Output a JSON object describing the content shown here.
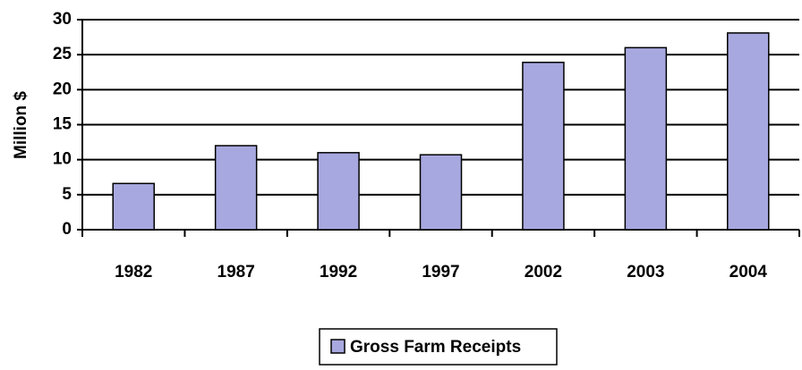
{
  "chart_data": {
    "type": "bar",
    "y_label": "Million $",
    "categories": [
      "1982",
      "1987",
      "1992",
      "1997",
      "2002",
      "2003",
      "2004"
    ],
    "series": [
      {
        "name": "Gross Farm Receipts",
        "color": "#a8a8e0",
        "values": [
          6.6,
          12,
          11,
          10.7,
          23.9,
          26,
          28.1
        ]
      }
    ],
    "ylim": [
      0,
      30
    ],
    "yticks": [
      0,
      5,
      10,
      15,
      20,
      25,
      30
    ],
    "grid": true,
    "legend": "bottom"
  }
}
